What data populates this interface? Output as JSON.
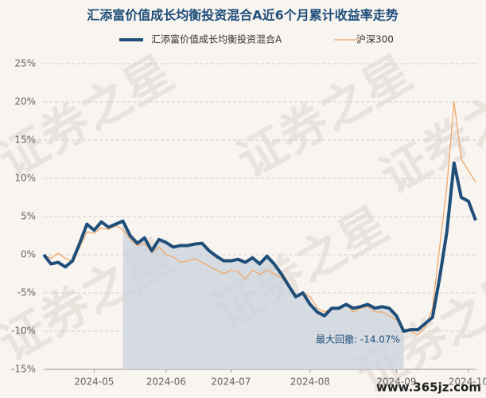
{
  "chart_data": {
    "type": "line",
    "title": "汇添富价值成长均衡投资混合A近6个月累计收益率走势",
    "watermark": "证券之星",
    "source": "www.365jz.com",
    "categories": [
      null,
      null,
      null,
      null,
      null,
      null,
      null,
      "2024-05",
      null,
      null,
      null,
      null,
      null,
      null,
      null,
      null,
      null,
      "2024-06",
      null,
      null,
      null,
      null,
      null,
      null,
      null,
      null,
      "2024-07",
      null,
      null,
      null,
      null,
      null,
      null,
      null,
      null,
      null,
      null,
      "2024-08",
      null,
      null,
      null,
      null,
      null,
      null,
      null,
      null,
      null,
      null,
      null,
      "2024-09",
      null,
      null,
      null,
      null,
      null,
      null,
      null,
      null,
      null,
      "2024-10",
      null
    ],
    "series": [
      {
        "name": "汇添富价值成长均衡投资混合A",
        "color": "#1f4e79",
        "values": [
          0,
          -1.2,
          -1.0,
          -1.6,
          -0.8,
          1.5,
          4.0,
          3.2,
          4.3,
          3.6,
          4.0,
          4.4,
          2.5,
          1.5,
          2.2,
          0.5,
          2.0,
          1.6,
          1.0,
          1.2,
          1.2,
          1.4,
          1.5,
          0.5,
          -0.2,
          -0.8,
          -0.8,
          -0.6,
          -1.0,
          -0.4,
          -1.2,
          -0.2,
          -1.2,
          -2.5,
          -4.0,
          -5.5,
          -5.0,
          -6.5,
          -7.5,
          -8.0,
          -7.0,
          -7.0,
          -6.5,
          -7.0,
          -6.8,
          -6.5,
          -7.0,
          -6.8,
          -7.0,
          -8.0,
          -10.0,
          -9.8,
          -9.8,
          -9.0,
          -8.2,
          -3.0,
          3.0,
          12.0,
          7.5,
          7.0,
          4.5
        ]
      },
      {
        "name": "沪深300",
        "color": "#f0a868",
        "values": [
          0,
          -0.5,
          0.2,
          -0.5,
          -0.8,
          1.0,
          3.0,
          2.8,
          3.5,
          3.3,
          3.8,
          3.3,
          2.0,
          1.2,
          1.5,
          0.3,
          1.0,
          0.0,
          -0.3,
          -1.0,
          -0.8,
          -0.5,
          -1.0,
          -1.5,
          -2.0,
          -2.5,
          -2.0,
          -2.2,
          -3.2,
          -2.0,
          -2.6,
          -2.0,
          -2.5,
          -3.0,
          -4.0,
          -5.5,
          -5.0,
          -5.5,
          -7.0,
          -7.5,
          -7.0,
          -7.0,
          -6.5,
          -7.5,
          -7.0,
          -6.8,
          -7.5,
          -7.5,
          -8.0,
          -8.5,
          -10.0,
          -10.0,
          -10.5,
          -9.5,
          -7.0,
          1.0,
          9.0,
          20.0,
          12.5,
          11.0,
          9.5
        ]
      }
    ],
    "max_drawdown": {
      "label": "最大回撤: -14.07%",
      "value": -14.07,
      "from_index": 11,
      "to_index": 50
    },
    "ylim": [
      -15,
      25
    ],
    "yticks": [
      {
        "value": -15,
        "label": "-15%"
      },
      {
        "value": -10,
        "label": "-10%"
      },
      {
        "value": -5,
        "label": "-5%"
      },
      {
        "value": 0,
        "label": "0%"
      },
      {
        "value": 5,
        "label": "5%"
      },
      {
        "value": 10,
        "label": "10%"
      },
      {
        "value": 15,
        "label": "15%"
      },
      {
        "value": 20,
        "label": "20%"
      },
      {
        "value": 25,
        "label": "25%"
      }
    ],
    "grid": true
  }
}
